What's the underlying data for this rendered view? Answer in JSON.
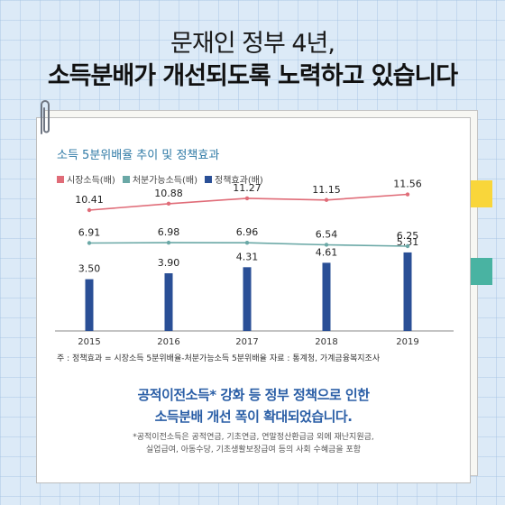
{
  "header": {
    "line1": "문재인 정부 4년,",
    "line2": "소득분배가 개선되도록 노력하고 있습니다"
  },
  "chart_data": {
    "type": "line+bar",
    "title": "소득 5분위배율 추이 및 정책효과",
    "categories": [
      "2015",
      "2016",
      "2017",
      "2018",
      "2019"
    ],
    "series": [
      {
        "name": "시장소득(배)",
        "type": "line",
        "color": "#e06c78",
        "values": [
          10.41,
          10.88,
          11.27,
          11.15,
          11.56
        ],
        "labels": [
          "10.41",
          "10.88",
          "11.27",
          "11.15",
          "11.56"
        ]
      },
      {
        "name": "처분가능소득(배)",
        "type": "line",
        "color": "#6aa8a6",
        "values": [
          6.91,
          6.98,
          6.96,
          6.54,
          6.25
        ],
        "labels": [
          "6.91",
          "6.98",
          "6.96",
          "6.54",
          "6.25"
        ]
      },
      {
        "name": "정책효과(배)",
        "type": "bar",
        "color": "#2a4f96",
        "values": [
          3.5,
          3.9,
          4.31,
          4.61,
          5.31
        ],
        "labels": [
          "3.50",
          "3.90",
          "4.31",
          "4.61",
          "5.31"
        ]
      }
    ],
    "legend_position": "top-left",
    "grid": false
  },
  "notes": {
    "left": "주 : 정책효과 = 시장소득 5분위배율-처분가능소득 5분위배율",
    "right": "자료 : 통계청, 가계금융복지조사"
  },
  "body": {
    "line1": "공적이전소득* 강화 등 정부 정책으로 인한",
    "line2": "소득분배 개선 폭이 확대되었습니다.",
    "footnote1": "*공적이전소득은 공적연금, 기초연금, 연말정산환급금 외에 재난지원금,",
    "footnote2": "실업급여, 아동수당, 기초생활보장급여 등의 사회 수혜금을 포함"
  },
  "colors": {
    "background": "#dceaf7",
    "accent_blue": "#2a5ea6",
    "tab_yellow": "#f9d63a",
    "tab_teal": "#49b3a2"
  }
}
